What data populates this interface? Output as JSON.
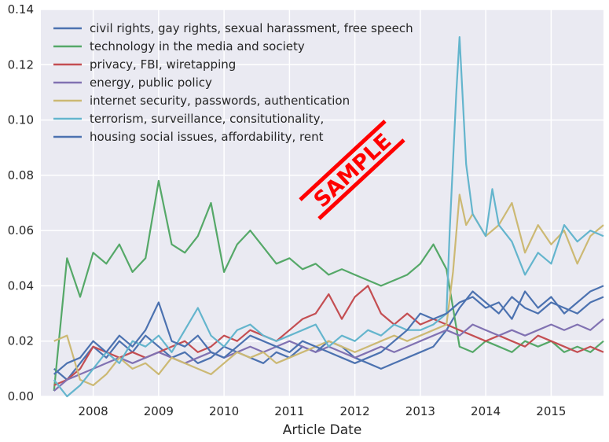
{
  "chart_data": {
    "type": "line",
    "title": "",
    "xlabel": "Article Date",
    "ylabel": "",
    "xlim": [
      2007.2,
      2015.8
    ],
    "ylim": [
      0,
      0.14
    ],
    "x_ticks": [
      2008,
      2009,
      2010,
      2011,
      2012,
      2013,
      2014,
      2015
    ],
    "x_tick_labels": [
      "2008",
      "2009",
      "2010",
      "2011",
      "2012",
      "2013",
      "2014",
      "2015"
    ],
    "y_ticks": [
      0,
      0.02,
      0.04,
      0.06,
      0.08,
      0.1,
      0.12,
      0.14
    ],
    "y_tick_labels": [
      "0.00",
      "0.02",
      "0.04",
      "0.06",
      "0.08",
      "0.10",
      "0.12",
      "0.14"
    ],
    "grid": true,
    "legend_position": "top-left",
    "series": [
      {
        "name": "civil rights, gay rights, sexual harassment, free speech",
        "color": "#4c72b0",
        "x": [
          2007.4,
          2007.6,
          2007.8,
          2008.0,
          2008.2,
          2008.4,
          2008.6,
          2008.8,
          2009.0,
          2009.2,
          2009.4,
          2009.6,
          2009.8,
          2010.0,
          2010.2,
          2010.4,
          2010.6,
          2010.8,
          2011.0,
          2011.2,
          2011.4,
          2011.6,
          2011.8,
          2012.0,
          2012.2,
          2012.4,
          2012.6,
          2012.8,
          2013.0,
          2013.2,
          2013.4,
          2013.6,
          2013.8,
          2014.0,
          2014.2,
          2014.4,
          2014.6,
          2014.8,
          2015.0,
          2015.2,
          2015.4,
          2015.6,
          2015.8
        ],
        "y": [
          0.01,
          0.006,
          0.012,
          0.018,
          0.014,
          0.02,
          0.016,
          0.022,
          0.018,
          0.014,
          0.016,
          0.012,
          0.014,
          0.018,
          0.016,
          0.014,
          0.012,
          0.016,
          0.014,
          0.018,
          0.016,
          0.02,
          0.018,
          0.014,
          0.012,
          0.01,
          0.012,
          0.014,
          0.016,
          0.018,
          0.024,
          0.032,
          0.038,
          0.034,
          0.03,
          0.036,
          0.032,
          0.03,
          0.034,
          0.032,
          0.03,
          0.034,
          0.036
        ]
      },
      {
        "name": "technology in the media and society",
        "color": "#55a868",
        "x": [
          2007.4,
          2007.6,
          2007.8,
          2008.0,
          2008.2,
          2008.4,
          2008.6,
          2008.8,
          2009.0,
          2009.2,
          2009.4,
          2009.6,
          2009.8,
          2010.0,
          2010.2,
          2010.4,
          2010.6,
          2010.8,
          2011.0,
          2011.2,
          2011.4,
          2011.6,
          2011.8,
          2012.0,
          2012.2,
          2012.4,
          2012.6,
          2012.8,
          2013.0,
          2013.2,
          2013.4,
          2013.6,
          2013.8,
          2014.0,
          2014.2,
          2014.4,
          2014.6,
          2014.8,
          2015.0,
          2015.2,
          2015.4,
          2015.6,
          2015.8
        ],
        "y": [
          0.002,
          0.05,
          0.036,
          0.052,
          0.048,
          0.055,
          0.045,
          0.05,
          0.078,
          0.055,
          0.052,
          0.058,
          0.07,
          0.045,
          0.055,
          0.06,
          0.054,
          0.048,
          0.05,
          0.046,
          0.048,
          0.044,
          0.046,
          0.044,
          0.042,
          0.04,
          0.042,
          0.044,
          0.048,
          0.055,
          0.046,
          0.018,
          0.016,
          0.02,
          0.018,
          0.016,
          0.02,
          0.018,
          0.02,
          0.016,
          0.018,
          0.016,
          0.02
        ]
      },
      {
        "name": "privacy, FBI, wiretapping",
        "color": "#c44e52",
        "x": [
          2007.4,
          2007.6,
          2007.8,
          2008.0,
          2008.2,
          2008.4,
          2008.6,
          2008.8,
          2009.0,
          2009.2,
          2009.4,
          2009.6,
          2009.8,
          2010.0,
          2010.2,
          2010.4,
          2010.6,
          2010.8,
          2011.0,
          2011.2,
          2011.4,
          2011.6,
          2011.8,
          2012.0,
          2012.2,
          2012.4,
          2012.6,
          2012.8,
          2013.0,
          2013.2,
          2013.4,
          2013.6,
          2013.8,
          2014.0,
          2014.2,
          2014.4,
          2014.6,
          2014.8,
          2015.0,
          2015.2,
          2015.4,
          2015.6,
          2015.8
        ],
        "y": [
          0.004,
          0.006,
          0.01,
          0.018,
          0.016,
          0.014,
          0.016,
          0.014,
          0.016,
          0.018,
          0.02,
          0.016,
          0.018,
          0.022,
          0.02,
          0.024,
          0.022,
          0.02,
          0.024,
          0.028,
          0.03,
          0.037,
          0.028,
          0.036,
          0.04,
          0.03,
          0.026,
          0.03,
          0.026,
          0.028,
          0.026,
          0.024,
          0.022,
          0.02,
          0.022,
          0.02,
          0.018,
          0.022,
          0.02,
          0.018,
          0.016,
          0.018,
          0.016
        ]
      },
      {
        "name": "energy, public policy",
        "color": "#8172b2",
        "x": [
          2007.4,
          2007.6,
          2007.8,
          2008.0,
          2008.2,
          2008.4,
          2008.6,
          2008.8,
          2009.0,
          2009.2,
          2009.4,
          2009.6,
          2009.8,
          2010.0,
          2010.2,
          2010.4,
          2010.6,
          2010.8,
          2011.0,
          2011.2,
          2011.4,
          2011.6,
          2011.8,
          2012.0,
          2012.2,
          2012.4,
          2012.6,
          2012.8,
          2013.0,
          2013.2,
          2013.4,
          2013.6,
          2013.8,
          2014.0,
          2014.2,
          2014.4,
          2014.6,
          2014.8,
          2015.0,
          2015.2,
          2015.4,
          2015.6,
          2015.8
        ],
        "y": [
          0.002,
          0.006,
          0.008,
          0.01,
          0.012,
          0.014,
          0.012,
          0.014,
          0.016,
          0.014,
          0.012,
          0.014,
          0.016,
          0.014,
          0.016,
          0.018,
          0.016,
          0.018,
          0.02,
          0.018,
          0.016,
          0.018,
          0.016,
          0.014,
          0.016,
          0.018,
          0.016,
          0.018,
          0.02,
          0.022,
          0.024,
          0.022,
          0.026,
          0.024,
          0.022,
          0.024,
          0.022,
          0.024,
          0.026,
          0.024,
          0.026,
          0.024,
          0.028
        ]
      },
      {
        "name": "internet security, passwords, authentication",
        "color": "#ccb974",
        "x": [
          2007.4,
          2007.6,
          2007.8,
          2008.0,
          2008.2,
          2008.4,
          2008.6,
          2008.8,
          2009.0,
          2009.2,
          2009.4,
          2009.6,
          2009.8,
          2010.0,
          2010.2,
          2010.4,
          2010.6,
          2010.8,
          2011.0,
          2011.2,
          2011.4,
          2011.6,
          2011.8,
          2012.0,
          2012.2,
          2012.4,
          2012.6,
          2012.8,
          2013.0,
          2013.2,
          2013.4,
          2013.5,
          2013.6,
          2013.7,
          2013.8,
          2014.0,
          2014.2,
          2014.4,
          2014.6,
          2014.8,
          2015.0,
          2015.2,
          2015.4,
          2015.6,
          2015.8
        ],
        "y": [
          0.02,
          0.022,
          0.006,
          0.004,
          0.008,
          0.014,
          0.01,
          0.012,
          0.008,
          0.014,
          0.012,
          0.01,
          0.008,
          0.012,
          0.016,
          0.014,
          0.016,
          0.012,
          0.014,
          0.016,
          0.018,
          0.02,
          0.018,
          0.016,
          0.018,
          0.02,
          0.022,
          0.02,
          0.022,
          0.024,
          0.026,
          0.045,
          0.073,
          0.062,
          0.066,
          0.058,
          0.062,
          0.07,
          0.052,
          0.062,
          0.055,
          0.06,
          0.048,
          0.058,
          0.062
        ]
      },
      {
        "name": "terrorism, surveillance, consitutionality,",
        "color": "#64b5cd",
        "x": [
          2007.4,
          2007.6,
          2007.8,
          2008.0,
          2008.2,
          2008.4,
          2008.6,
          2008.8,
          2009.0,
          2009.2,
          2009.4,
          2009.6,
          2009.8,
          2010.0,
          2010.2,
          2010.4,
          2010.6,
          2010.8,
          2011.0,
          2011.2,
          2011.4,
          2011.6,
          2011.8,
          2012.0,
          2012.2,
          2012.4,
          2012.6,
          2012.8,
          2013.0,
          2013.2,
          2013.4,
          2013.45,
          2013.55,
          2013.6,
          2013.7,
          2013.8,
          2014.0,
          2014.1,
          2014.2,
          2014.4,
          2014.6,
          2014.8,
          2015.0,
          2015.2,
          2015.4,
          2015.6,
          2015.8
        ],
        "y": [
          0.006,
          0.0,
          0.004,
          0.01,
          0.016,
          0.012,
          0.02,
          0.018,
          0.022,
          0.016,
          0.024,
          0.032,
          0.022,
          0.018,
          0.024,
          0.026,
          0.022,
          0.02,
          0.022,
          0.024,
          0.026,
          0.018,
          0.022,
          0.02,
          0.024,
          0.022,
          0.026,
          0.024,
          0.024,
          0.026,
          0.03,
          0.06,
          0.11,
          0.13,
          0.084,
          0.066,
          0.058,
          0.075,
          0.062,
          0.056,
          0.044,
          0.052,
          0.048,
          0.062,
          0.056,
          0.06,
          0.058
        ]
      },
      {
        "name": "housing social issues, affordability, rent",
        "color": "#4c72b0",
        "x": [
          2007.4,
          2007.6,
          2007.8,
          2008.0,
          2008.2,
          2008.4,
          2008.6,
          2008.8,
          2009.0,
          2009.2,
          2009.4,
          2009.6,
          2009.8,
          2010.0,
          2010.2,
          2010.4,
          2010.6,
          2010.8,
          2011.0,
          2011.2,
          2011.4,
          2011.6,
          2011.8,
          2012.0,
          2012.2,
          2012.4,
          2012.6,
          2012.8,
          2013.0,
          2013.2,
          2013.4,
          2013.6,
          2013.8,
          2014.0,
          2014.2,
          2014.4,
          2014.6,
          2014.8,
          2015.0,
          2015.2,
          2015.4,
          2015.6,
          2015.8
        ],
        "y": [
          0.008,
          0.012,
          0.014,
          0.02,
          0.016,
          0.022,
          0.018,
          0.024,
          0.034,
          0.02,
          0.018,
          0.022,
          0.016,
          0.014,
          0.018,
          0.022,
          0.02,
          0.018,
          0.016,
          0.02,
          0.018,
          0.016,
          0.014,
          0.012,
          0.014,
          0.016,
          0.02,
          0.024,
          0.03,
          0.028,
          0.03,
          0.034,
          0.036,
          0.032,
          0.034,
          0.028,
          0.038,
          0.032,
          0.036,
          0.03,
          0.034,
          0.038,
          0.04
        ]
      }
    ]
  },
  "watermark": {
    "text": "SAMPLE",
    "color": "#ff0000"
  }
}
